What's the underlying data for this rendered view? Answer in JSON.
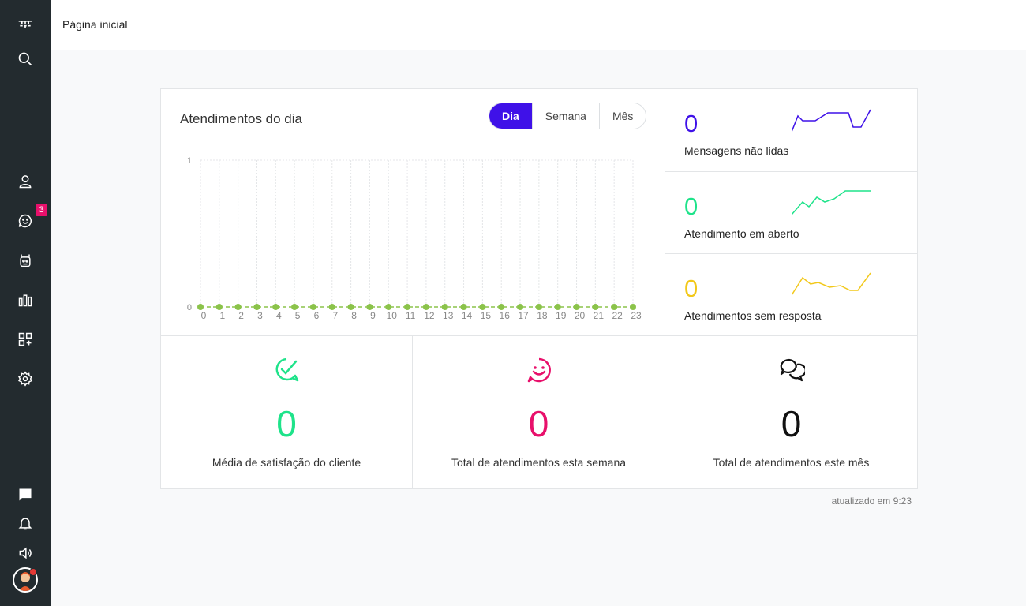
{
  "header": {
    "title": "Página inicial"
  },
  "sidebar": {
    "chat_badge": "3"
  },
  "chart": {
    "title": "Atendimentos do dia",
    "tabs": [
      {
        "label": "Dia",
        "active": true
      },
      {
        "label": "Semana",
        "active": false
      },
      {
        "label": "Mês",
        "active": false
      }
    ]
  },
  "chart_data": {
    "type": "line",
    "x": [
      0,
      1,
      2,
      3,
      4,
      5,
      6,
      7,
      8,
      9,
      10,
      11,
      12,
      13,
      14,
      15,
      16,
      17,
      18,
      19,
      20,
      21,
      22,
      23
    ],
    "values": [
      0,
      0,
      0,
      0,
      0,
      0,
      0,
      0,
      0,
      0,
      0,
      0,
      0,
      0,
      0,
      0,
      0,
      0,
      0,
      0,
      0,
      0,
      0,
      0
    ],
    "ylim": [
      0,
      1
    ],
    "yticks": [
      "0",
      "1"
    ],
    "color": "#8bc34a",
    "grid": true
  },
  "stats": [
    {
      "value": "0",
      "label": "Mensagens não lidas",
      "color": "#3f11e8"
    },
    {
      "value": "0",
      "label": "Atendimento em aberto",
      "color": "#1ee38a"
    },
    {
      "value": "0",
      "label": "Atendimentos sem resposta",
      "color": "#f2c81a"
    }
  ],
  "totals": [
    {
      "value": "0",
      "label": "Média de satisfação do cliente",
      "color": "#1ee38a",
      "icon": "check-chat-icon"
    },
    {
      "value": "0",
      "label": "Total de atendimentos esta semana",
      "color": "#e8106b",
      "icon": "smiley-icon"
    },
    {
      "value": "0",
      "label": "Total de atendimentos este mês",
      "color": "#111111",
      "icon": "chat-bubbles-icon"
    }
  ],
  "footer": {
    "updated": "atualizado em 9:23"
  }
}
